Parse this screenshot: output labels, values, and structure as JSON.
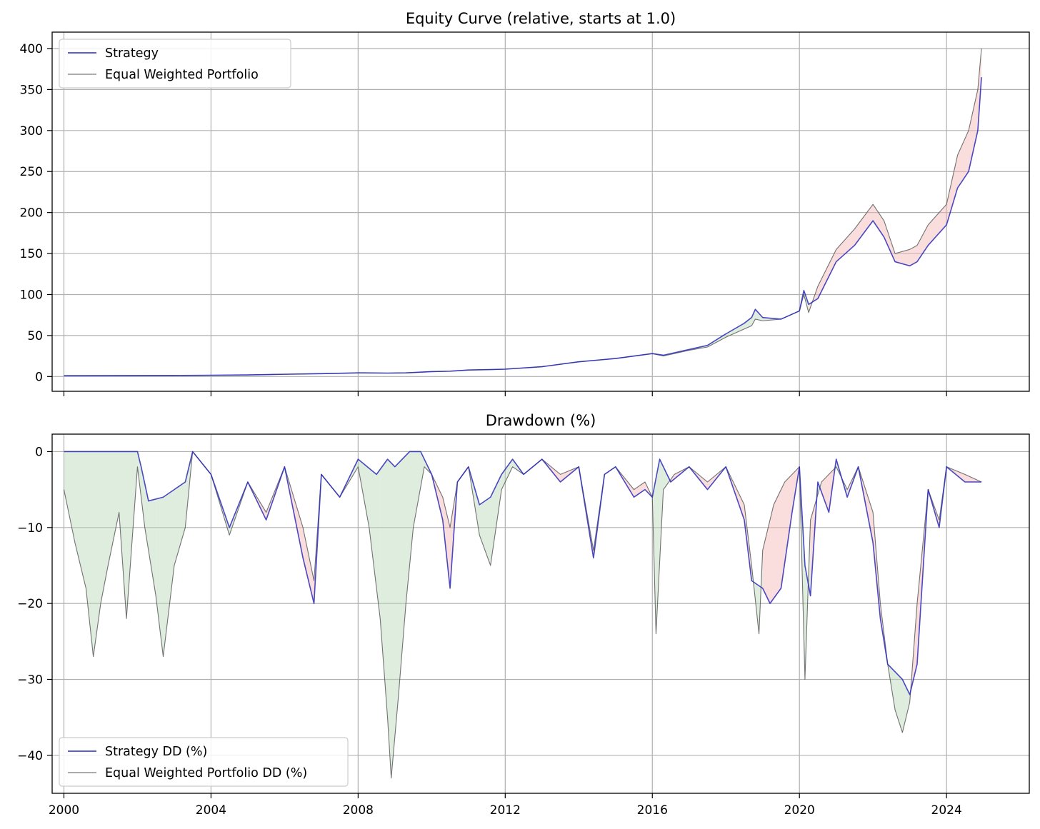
{
  "chart_data": [
    {
      "type": "line",
      "title": "Equity Curve (relative, starts at 1.0)",
      "xlabel": "",
      "ylabel": "",
      "xlim": [
        1999.68,
        2026.25
      ],
      "ylim": [
        -18,
        420
      ],
      "y_ticks": [
        0,
        50,
        100,
        150,
        200,
        250,
        300,
        350,
        400
      ],
      "y_tick_labels": [
        "0",
        "50",
        "100",
        "150",
        "200",
        "250",
        "300",
        "350",
        "400"
      ],
      "x_ticks": [
        2000,
        2004,
        2008,
        2012,
        2016,
        2020,
        2024
      ],
      "x_tick_labels_shown": false,
      "grid": true,
      "legend": {
        "position": "top-left",
        "entries": [
          "Strategy",
          "Equal Weighted Portfolio"
        ]
      },
      "fill_between": "red where benchmark above strategy, green where strategy above benchmark",
      "colors": {
        "strategy": "#2a2ab8",
        "benchmark": "#5a5a5a",
        "fill_above": "#f4b4b4",
        "fill_below": "#b7d8b7"
      },
      "series": [
        {
          "name": "Strategy",
          "x": [
            2000,
            2001,
            2002,
            2003,
            2004,
            2005,
            2006,
            2007,
            2008,
            2008.8,
            2009.3,
            2010,
            2010.5,
            2011,
            2011.6,
            2012,
            2013,
            2014,
            2014.5,
            2015,
            2016,
            2016.3,
            2017,
            2017.5,
            2018,
            2018.5,
            2018.7,
            2018.8,
            2019,
            2019.5,
            2020,
            2020.12,
            2020.25,
            2020.5,
            2021,
            2021.5,
            2022,
            2022.3,
            2022.6,
            2023,
            2023.2,
            2023.5,
            2024,
            2024.3,
            2024.6,
            2024.85,
            2024.95
          ],
          "y": [
            1,
            1.1,
            1.2,
            1.3,
            1.6,
            2,
            2.8,
            3.5,
            4.5,
            4.2,
            4.5,
            6,
            6.5,
            8,
            8.5,
            9,
            12,
            18,
            20,
            22,
            28,
            26,
            33,
            38,
            52,
            65,
            72,
            82,
            72,
            70,
            80,
            105,
            88,
            95,
            140,
            160,
            190,
            170,
            140,
            135,
            140,
            160,
            185,
            230,
            250,
            300,
            365
          ]
        },
        {
          "name": "Equal Weighted Portfolio",
          "x": [
            2000,
            2001,
            2002,
            2003,
            2004,
            2005,
            2006,
            2007,
            2008,
            2008.8,
            2009.3,
            2010,
            2010.5,
            2011,
            2011.6,
            2012,
            2013,
            2014,
            2014.5,
            2015,
            2016,
            2016.3,
            2017,
            2017.5,
            2018,
            2018.5,
            2018.7,
            2018.8,
            2019,
            2019.5,
            2020,
            2020.12,
            2020.25,
            2020.5,
            2021,
            2021.5,
            2022,
            2022.3,
            2022.6,
            2023,
            2023.2,
            2023.5,
            2024,
            2024.3,
            2024.6,
            2024.85,
            2024.95
          ],
          "y": [
            1,
            1.1,
            1.2,
            1.3,
            1.6,
            2,
            2.8,
            3.5,
            4.5,
            4.2,
            4.5,
            6,
            6.5,
            8,
            8.5,
            9,
            12,
            18,
            20,
            22,
            28,
            25,
            32,
            36,
            48,
            58,
            62,
            70,
            68,
            70,
            80,
            100,
            78,
            110,
            155,
            180,
            210,
            190,
            150,
            155,
            160,
            185,
            210,
            270,
            300,
            350,
            400
          ]
        }
      ]
    },
    {
      "type": "line",
      "title": "Drawdown (%)",
      "xlabel": "",
      "ylabel": "",
      "xlim": [
        1999.68,
        2026.25
      ],
      "ylim": [
        -45,
        2.3
      ],
      "y_ticks": [
        0,
        -10,
        -20,
        -30,
        -40
      ],
      "y_tick_labels": [
        "0",
        "−10",
        "−20",
        "−30",
        "−40"
      ],
      "x_ticks": [
        2000,
        2004,
        2008,
        2012,
        2016,
        2020,
        2024
      ],
      "x_tick_labels": [
        "2000",
        "2004",
        "2008",
        "2012",
        "2016",
        "2020",
        "2024"
      ],
      "grid": true,
      "legend": {
        "position": "bottom-left",
        "entries": [
          "Strategy DD (%)",
          "Equal Weighted Portfolio DD (%)"
        ]
      },
      "colors": {
        "strategy": "#2a2ab8",
        "benchmark": "#5a5a5a",
        "fill_above": "#f4b4b4",
        "fill_below": "#b7d8b7"
      },
      "series": [
        {
          "name": "Strategy DD (%)",
          "x": [
            2000,
            2001,
            2002,
            2002.1,
            2002.3,
            2002.7,
            2003,
            2003.3,
            2003.5,
            2004,
            2004.5,
            2005,
            2005.5,
            2006,
            2006.5,
            2006.8,
            2007,
            2007.5,
            2008,
            2008.5,
            2008.8,
            2009,
            2009.2,
            2009.4,
            2009.7,
            2010,
            2010.3,
            2010.5,
            2010.7,
            2011,
            2011.3,
            2011.6,
            2011.9,
            2012.2,
            2012.5,
            2013,
            2013.5,
            2014,
            2014.4,
            2014.7,
            2015,
            2015.5,
            2015.8,
            2016,
            2016.2,
            2016.5,
            2017,
            2017.5,
            2018,
            2018.5,
            2018.7,
            2019,
            2019.2,
            2019.5,
            2019.8,
            2020,
            2020.15,
            2020.3,
            2020.5,
            2020.8,
            2021,
            2021.3,
            2021.6,
            2022,
            2022.2,
            2022.4,
            2022.6,
            2022.8,
            2023,
            2023.2,
            2023.5,
            2023.8,
            2024,
            2024.5,
            2024.95
          ],
          "y": [
            0,
            0,
            0,
            -2,
            -6.5,
            -6,
            -5,
            -4,
            0,
            -3,
            -10,
            -4,
            -9,
            -2,
            -14,
            -20,
            -3,
            -6,
            -1,
            -3,
            -1,
            -2,
            -1,
            0,
            0,
            -3,
            -9,
            -18,
            -4,
            -2,
            -7,
            -6,
            -3,
            -1,
            -3,
            -1,
            -4,
            -2,
            -14,
            -3,
            -2,
            -6,
            -5,
            -6,
            -1,
            -4,
            -2,
            -5,
            -2,
            -9,
            -17,
            -18,
            -20,
            -18,
            -8,
            -2,
            -15,
            -19,
            -4,
            -8,
            -1,
            -6,
            -2,
            -12,
            -22,
            -28,
            -29,
            -30,
            -32,
            -28,
            -5,
            -10,
            -2,
            -4,
            -4
          ]
        },
        {
          "name": "Equal Weighted Portfolio DD (%)",
          "x": [
            2000,
            2000.3,
            2000.6,
            2000.8,
            2001,
            2001.2,
            2001.5,
            2001.7,
            2002,
            2002.2,
            2002.5,
            2002.7,
            2003,
            2003.3,
            2003.5,
            2004,
            2004.5,
            2005,
            2005.5,
            2006,
            2006.5,
            2006.8,
            2007,
            2007.5,
            2008,
            2008.3,
            2008.6,
            2008.8,
            2008.9,
            2009.1,
            2009.3,
            2009.5,
            2009.8,
            2010,
            2010.3,
            2010.5,
            2010.7,
            2011,
            2011.3,
            2011.6,
            2011.9,
            2012.2,
            2012.5,
            2013,
            2013.5,
            2014,
            2014.4,
            2014.7,
            2015,
            2015.5,
            2015.8,
            2016,
            2016.1,
            2016.3,
            2016.6,
            2017,
            2017.5,
            2018,
            2018.5,
            2018.7,
            2018.9,
            2019,
            2019.3,
            2019.6,
            2020,
            2020.15,
            2020.3,
            2020.6,
            2021,
            2021.3,
            2021.6,
            2022,
            2022.2,
            2022.4,
            2022.6,
            2022.8,
            2023,
            2023.2,
            2023.5,
            2023.8,
            2024,
            2024.5,
            2024.95
          ],
          "y": [
            -5,
            -12,
            -18,
            -27,
            -20,
            -15,
            -8,
            -22,
            -2,
            -10,
            -19,
            -27,
            -15,
            -10,
            0,
            -3,
            -11,
            -4,
            -8,
            -2,
            -10,
            -17,
            -3,
            -6,
            -2,
            -10,
            -22,
            -35,
            -43,
            -32,
            -20,
            -10,
            -2,
            -3,
            -6,
            -10,
            -4,
            -2,
            -11,
            -15,
            -5,
            -2,
            -3,
            -1,
            -3,
            -2,
            -13,
            -3,
            -2,
            -5,
            -4,
            -6,
            -24,
            -5,
            -3,
            -2,
            -4,
            -2,
            -7,
            -15,
            -24,
            -13,
            -7,
            -4,
            -2,
            -30,
            -9,
            -4,
            -2,
            -5,
            -2,
            -8,
            -20,
            -28,
            -34,
            -37,
            -33,
            -20,
            -5,
            -9,
            -2,
            -3,
            -4
          ]
        }
      ]
    }
  ]
}
